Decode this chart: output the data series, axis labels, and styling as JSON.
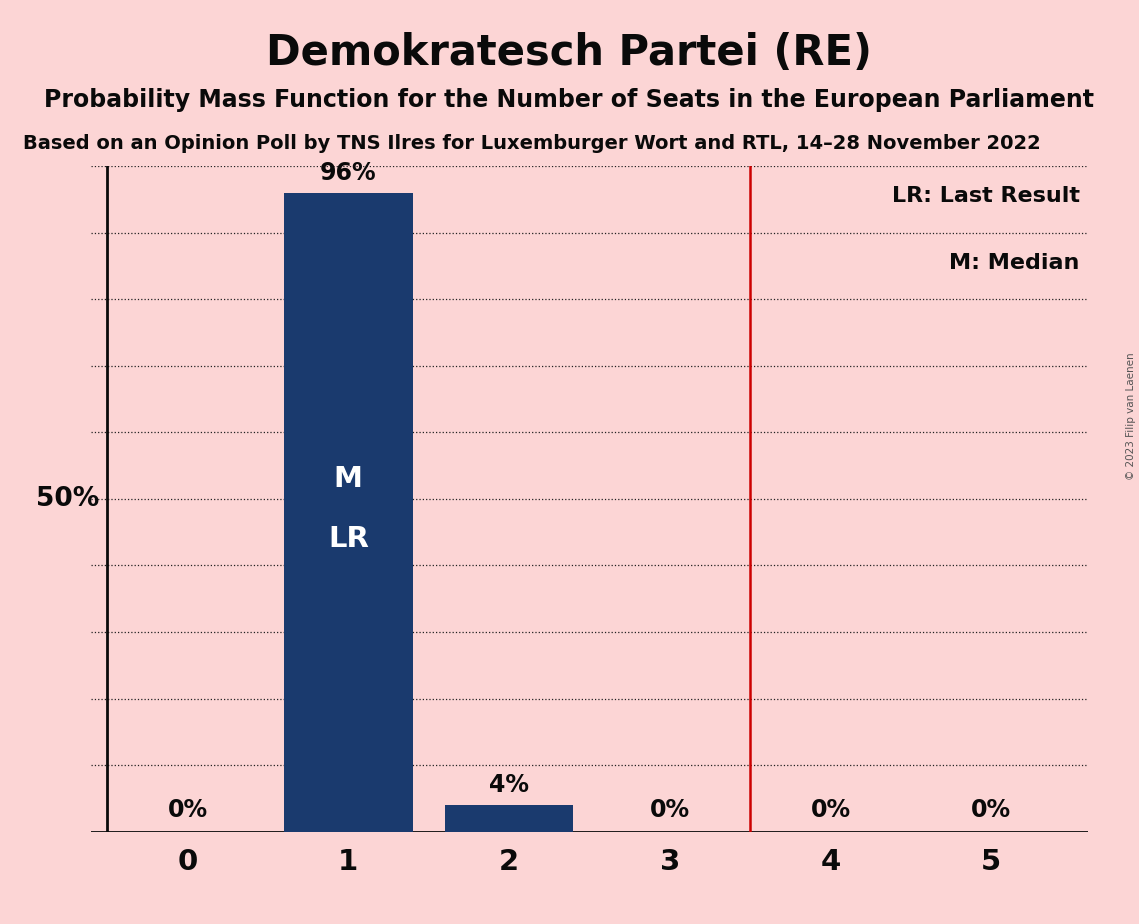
{
  "title": "Demokratesch Partei (RE)",
  "subtitle": "Probability Mass Function for the Number of Seats in the European Parliament",
  "source": "Based on an Opinion Poll by TNS Ilres for Luxemburger Wort and RTL, 14–28 November 2022",
  "copyright": "© 2023 Filip van Laenen",
  "categories": [
    0,
    1,
    2,
    3,
    4,
    5
  ],
  "values": [
    0,
    96,
    4,
    0,
    0,
    0
  ],
  "bar_color": "#1a3a6e",
  "background_color": "#fcd5d5",
  "vline_x": 3.5,
  "vline_color": "#cc0000",
  "bar_label_color": "#ffffff",
  "pct_label_color": "#0a0a0a",
  "y50_label": "50%",
  "legend_lr": "LR: Last Result",
  "legend_m": "M: Median",
  "title_fontsize": 30,
  "subtitle_fontsize": 17,
  "source_fontsize": 14,
  "ylim": [
    0,
    100
  ],
  "yticks": [
    10,
    20,
    30,
    40,
    50,
    60,
    70,
    80,
    90,
    100
  ]
}
